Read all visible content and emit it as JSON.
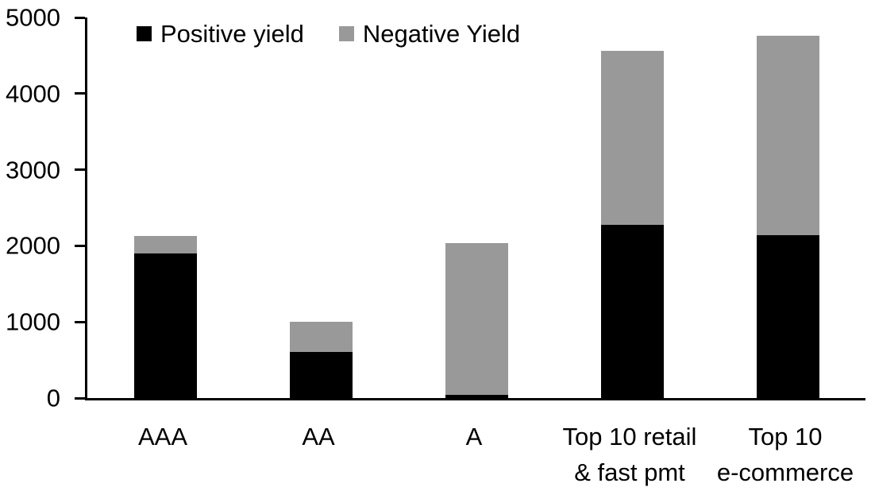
{
  "chart_data": {
    "type": "bar",
    "stacked": true,
    "title": "",
    "xlabel": "",
    "ylabel": "",
    "categories": [
      "AAA",
      "AA",
      "A",
      "Top 10 retail\n& fast pmt",
      "Top 10\ne-commerce"
    ],
    "series": [
      {
        "name": "Positive yield",
        "color": "#000000",
        "values": [
          1900,
          610,
          40,
          2280,
          2140
        ]
      },
      {
        "name": "Negative Yield",
        "color": "#999999",
        "values": [
          230,
          390,
          2000,
          2280,
          2620
        ]
      }
    ],
    "totals": [
      2130,
      1000,
      2040,
      4560,
      4760
    ],
    "ylim": [
      0,
      5000
    ],
    "y_ticks": [
      0,
      1000,
      2000,
      3000,
      4000,
      5000
    ],
    "grid": false,
    "legend_position": "top",
    "axis_color": "#000000",
    "background_color": "#ffffff"
  }
}
